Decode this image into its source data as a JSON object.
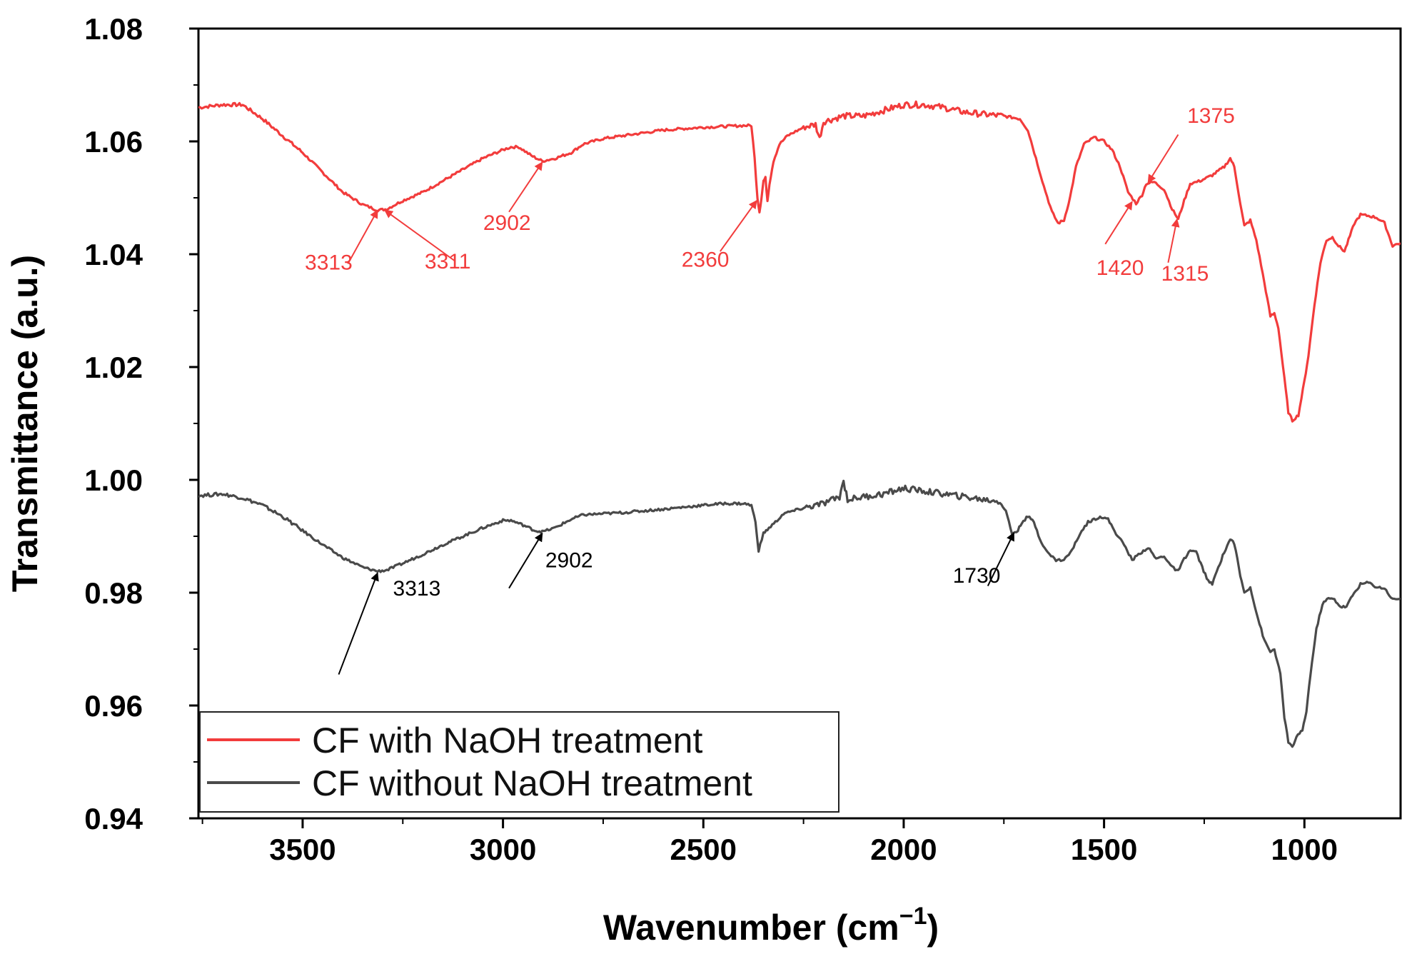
{
  "chart_data": {
    "type": "line",
    "title": "",
    "xlabel": "Wavenumber  (cm",
    "xlabel_sup": "−1",
    "xlabel_close": ")",
    "ylabel": "Transmittance (a.u.)",
    "xlim": [
      3760,
      760
    ],
    "ylim": [
      0.94,
      1.08
    ],
    "x_ticks": [
      3500,
      3000,
      2500,
      2000,
      1500,
      1000
    ],
    "x_tick_labels": [
      "3500",
      "3000",
      "2500",
      "2000",
      "1500",
      "1000"
    ],
    "y_ticks": [
      0.94,
      0.96,
      0.98,
      1.0,
      1.02,
      1.04,
      1.06,
      1.08
    ],
    "y_tick_labels": [
      "0.94",
      "0.96",
      "0.98",
      "1.00",
      "1.02",
      "1.04",
      "1.06",
      "1.08"
    ],
    "grid": false,
    "legend_position": "bottom-left",
    "series": [
      {
        "name": "CF with NaOH treatment",
        "color": "#f23c3c",
        "points": [
          [
            3760,
            1.066
          ],
          [
            3700,
            1.0665
          ],
          [
            3650,
            1.0665
          ],
          [
            3600,
            1.064
          ],
          [
            3550,
            1.061
          ],
          [
            3500,
            1.058
          ],
          [
            3450,
            1.0545
          ],
          [
            3400,
            1.051
          ],
          [
            3350,
            1.0488
          ],
          [
            3313,
            1.0478
          ],
          [
            3290,
            1.048
          ],
          [
            3250,
            1.0495
          ],
          [
            3200,
            1.051
          ],
          [
            3150,
            1.053
          ],
          [
            3100,
            1.055
          ],
          [
            3050,
            1.057
          ],
          [
            3000,
            1.0585
          ],
          [
            2980,
            1.059
          ],
          [
            2960,
            1.059
          ],
          [
            2930,
            1.0575
          ],
          [
            2902,
            1.0565
          ],
          [
            2870,
            1.057
          ],
          [
            2830,
            1.058
          ],
          [
            2800,
            1.0595
          ],
          [
            2750,
            1.0605
          ],
          [
            2700,
            1.061
          ],
          [
            2600,
            1.062
          ],
          [
            2500,
            1.0625
          ],
          [
            2400,
            1.0628
          ],
          [
            2380,
            1.0628
          ],
          [
            2372,
            1.057
          ],
          [
            2365,
            1.05
          ],
          [
            2360,
            1.0475
          ],
          [
            2355,
            1.05
          ],
          [
            2350,
            1.053
          ],
          [
            2345,
            1.0535
          ],
          [
            2340,
            1.0495
          ],
          [
            2335,
            1.0525
          ],
          [
            2325,
            1.0565
          ],
          [
            2310,
            1.0595
          ],
          [
            2290,
            1.061
          ],
          [
            2250,
            1.0625
          ],
          [
            2220,
            1.063
          ],
          [
            2210,
            1.0605
          ],
          [
            2200,
            1.0635
          ],
          [
            2150,
            1.0645
          ],
          [
            2100,
            1.0645
          ],
          [
            2050,
            1.0655
          ],
          [
            2000,
            1.0665
          ],
          [
            1950,
            1.0665
          ],
          [
            1900,
            1.066
          ],
          [
            1850,
            1.0652
          ],
          [
            1800,
            1.0648
          ],
          [
            1750,
            1.0645
          ],
          [
            1710,
            1.064
          ],
          [
            1690,
            1.062
          ],
          [
            1670,
            1.057
          ],
          [
            1650,
            1.052
          ],
          [
            1630,
            1.0475
          ],
          [
            1615,
            1.0455
          ],
          [
            1600,
            1.046
          ],
          [
            1585,
            1.05
          ],
          [
            1570,
            1.0555
          ],
          [
            1550,
            1.0595
          ],
          [
            1525,
            1.0607
          ],
          [
            1500,
            1.06
          ],
          [
            1480,
            1.0585
          ],
          [
            1460,
            1.0555
          ],
          [
            1440,
            1.051
          ],
          [
            1420,
            1.049
          ],
          [
            1405,
            1.0505
          ],
          [
            1395,
            1.0525
          ],
          [
            1375,
            1.0528
          ],
          [
            1350,
            1.0515
          ],
          [
            1330,
            1.048
          ],
          [
            1315,
            1.0462
          ],
          [
            1300,
            1.0495
          ],
          [
            1285,
            1.0525
          ],
          [
            1260,
            1.053
          ],
          [
            1230,
            1.054
          ],
          [
            1200,
            1.0555
          ],
          [
            1185,
            1.057
          ],
          [
            1175,
            1.0555
          ],
          [
            1160,
            1.049
          ],
          [
            1150,
            1.045
          ],
          [
            1135,
            1.046
          ],
          [
            1120,
            1.0425
          ],
          [
            1100,
            1.035
          ],
          [
            1085,
            1.029
          ],
          [
            1075,
            1.0295
          ],
          [
            1065,
            1.027
          ],
          [
            1050,
            1.018
          ],
          [
            1040,
            1.012
          ],
          [
            1030,
            1.0105
          ],
          [
            1015,
            1.0115
          ],
          [
            1000,
            1.0175
          ],
          [
            990,
            1.022
          ],
          [
            975,
            1.031
          ],
          [
            960,
            1.0385
          ],
          [
            945,
            1.0425
          ],
          [
            930,
            1.043
          ],
          [
            915,
            1.0415
          ],
          [
            900,
            1.0405
          ],
          [
            890,
            1.0425
          ],
          [
            875,
            1.0455
          ],
          [
            860,
            1.047
          ],
          [
            840,
            1.0468
          ],
          [
            820,
            1.0465
          ],
          [
            800,
            1.0455
          ],
          [
            780,
            1.0415
          ],
          [
            760,
            1.042
          ]
        ]
      },
      {
        "name": "CF without NaOH treatment",
        "color": "#4a4a4a",
        "points": [
          [
            3760,
            0.9972
          ],
          [
            3700,
            0.9975
          ],
          [
            3650,
            0.9968
          ],
          [
            3600,
            0.9955
          ],
          [
            3550,
            0.9935
          ],
          [
            3500,
            0.991
          ],
          [
            3450,
            0.9885
          ],
          [
            3400,
            0.9862
          ],
          [
            3350,
            0.9845
          ],
          [
            3313,
            0.9838
          ],
          [
            3290,
            0.984
          ],
          [
            3250,
            0.9852
          ],
          [
            3200,
            0.9868
          ],
          [
            3150,
            0.9885
          ],
          [
            3100,
            0.99
          ],
          [
            3050,
            0.9915
          ],
          [
            3000,
            0.9928
          ],
          [
            2980,
            0.9928
          ],
          [
            2950,
            0.992
          ],
          [
            2920,
            0.991
          ],
          [
            2902,
            0.9908
          ],
          [
            2870,
            0.9915
          ],
          [
            2830,
            0.993
          ],
          [
            2800,
            0.9938
          ],
          [
            2700,
            0.9942
          ],
          [
            2600,
            0.9948
          ],
          [
            2500,
            0.9955
          ],
          [
            2450,
            0.9958
          ],
          [
            2400,
            0.9958
          ],
          [
            2380,
            0.9955
          ],
          [
            2370,
            0.9925
          ],
          [
            2362,
            0.9875
          ],
          [
            2358,
            0.9885
          ],
          [
            2350,
            0.9905
          ],
          [
            2340,
            0.9912
          ],
          [
            2320,
            0.9925
          ],
          [
            2300,
            0.994
          ],
          [
            2250,
            0.995
          ],
          [
            2200,
            0.9958
          ],
          [
            2160,
            0.997
          ],
          [
            2150,
            0.9998
          ],
          [
            2140,
            0.9965
          ],
          [
            2100,
            0.997
          ],
          [
            2050,
            0.9975
          ],
          [
            2000,
            0.9985
          ],
          [
            1950,
            0.998
          ],
          [
            1900,
            0.9975
          ],
          [
            1850,
            0.997
          ],
          [
            1800,
            0.9965
          ],
          [
            1760,
            0.9962
          ],
          [
            1745,
            0.9945
          ],
          [
            1730,
            0.9905
          ],
          [
            1715,
            0.991
          ],
          [
            1705,
            0.9925
          ],
          [
            1690,
            0.9935
          ],
          [
            1675,
            0.9925
          ],
          [
            1660,
            0.9895
          ],
          [
            1640,
            0.987
          ],
          [
            1620,
            0.9858
          ],
          [
            1600,
            0.9858
          ],
          [
            1580,
            0.9875
          ],
          [
            1560,
            0.9905
          ],
          [
            1540,
            0.9925
          ],
          [
            1510,
            0.9935
          ],
          [
            1490,
            0.993
          ],
          [
            1470,
            0.9905
          ],
          [
            1450,
            0.9885
          ],
          [
            1430,
            0.9858
          ],
          [
            1410,
            0.987
          ],
          [
            1390,
            0.988
          ],
          [
            1370,
            0.986
          ],
          [
            1350,
            0.9865
          ],
          [
            1330,
            0.9845
          ],
          [
            1315,
            0.9838
          ],
          [
            1300,
            0.986
          ],
          [
            1285,
            0.9875
          ],
          [
            1270,
            0.9872
          ],
          [
            1255,
            0.9845
          ],
          [
            1240,
            0.982
          ],
          [
            1230,
            0.9815
          ],
          [
            1215,
            0.9845
          ],
          [
            1200,
            0.9872
          ],
          [
            1185,
            0.9895
          ],
          [
            1175,
            0.9888
          ],
          [
            1160,
            0.983
          ],
          [
            1150,
            0.98
          ],
          [
            1135,
            0.981
          ],
          [
            1120,
            0.9765
          ],
          [
            1100,
            0.9715
          ],
          [
            1085,
            0.9695
          ],
          [
            1075,
            0.97
          ],
          [
            1060,
            0.9655
          ],
          [
            1050,
            0.958
          ],
          [
            1040,
            0.9535
          ],
          [
            1030,
            0.9525
          ],
          [
            1020,
            0.9545
          ],
          [
            1005,
            0.9555
          ],
          [
            995,
            0.959
          ],
          [
            985,
            0.9655
          ],
          [
            970,
            0.9735
          ],
          [
            955,
            0.978
          ],
          [
            940,
            0.979
          ],
          [
            925,
            0.9788
          ],
          [
            910,
            0.9775
          ],
          [
            895,
            0.9775
          ],
          [
            880,
            0.9795
          ],
          [
            860,
            0.9815
          ],
          [
            840,
            0.9818
          ],
          [
            820,
            0.981
          ],
          [
            800,
            0.9808
          ],
          [
            780,
            0.9788
          ],
          [
            760,
            0.979
          ]
        ]
      }
    ],
    "annotations": [
      {
        "text": "3313",
        "color": "#f23c3c",
        "target": [
          3313,
          1.0478
        ],
        "arrow_from": [
          3387,
          1.0383
        ],
        "label_at": [
          3435,
          1.0373
        ],
        "anchor": "middle"
      },
      {
        "text": "3311",
        "color": "#f23c3c",
        "target": [
          3295,
          1.0478
        ],
        "arrow_from": [
          3120,
          1.0388
        ],
        "label_at": [
          3138,
          1.0375
        ],
        "anchor": "middle"
      },
      {
        "text": "2902",
        "color": "#f23c3c",
        "target": [
          2902,
          1.0563
        ],
        "arrow_from": [
          2985,
          1.0475
        ],
        "label_at": [
          2990,
          1.0443
        ],
        "anchor": "middle"
      },
      {
        "text": "2360",
        "color": "#f23c3c",
        "target": [
          2367,
          1.0495
        ],
        "arrow_from": [
          2458,
          1.0405
        ],
        "label_at": [
          2495,
          1.0378
        ],
        "anchor": "middle"
      },
      {
        "text": "1375",
        "color": "#f23c3c",
        "target": [
          1390,
          1.0527
        ],
        "arrow_from": [
          1315,
          1.0612
        ],
        "label_at": [
          1233,
          1.0633
        ],
        "anchor": "middle"
      },
      {
        "text": "1420",
        "color": "#f23c3c",
        "target": [
          1430,
          1.0493
        ],
        "arrow_from": [
          1497,
          1.0418
        ],
        "label_at": [
          1460,
          1.0363
        ],
        "anchor": "middle"
      },
      {
        "text": "1315",
        "color": "#f23c3c",
        "target": [
          1318,
          1.0462
        ],
        "arrow_from": [
          1340,
          1.0385
        ],
        "label_at": [
          1298,
          1.0353
        ],
        "anchor": "middle"
      },
      {
        "text": "3313",
        "color": "#000000",
        "target": [
          3313,
          0.9835
        ],
        "arrow_from": [
          3410,
          0.9655
        ],
        "label_at": [
          3215,
          0.9795
        ],
        "anchor": "middle"
      },
      {
        "text": "2902",
        "color": "#000000",
        "target": [
          2902,
          0.9905
        ],
        "arrow_from": [
          2985,
          0.9808
        ],
        "label_at": [
          2835,
          0.9845
        ],
        "anchor": "middle"
      },
      {
        "text": "1730",
        "color": "#000000",
        "target": [
          1725,
          0.9906
        ],
        "arrow_from": [
          1790,
          0.9812
        ],
        "label_at": [
          1818,
          0.9818
        ],
        "anchor": "middle"
      }
    ]
  }
}
